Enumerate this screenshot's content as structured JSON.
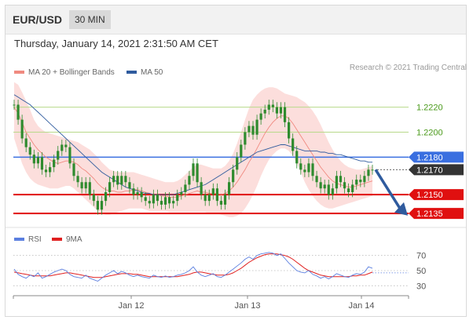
{
  "header": {
    "symbol": "EUR/USD",
    "timeframe": "30 MIN"
  },
  "datetime": "Thursday, January 14, 2021 2:31:50 AM CET",
  "legend": {
    "bollinger": {
      "label": "MA 20 + Bollinger Bands",
      "color": "#f08a80"
    },
    "ma50": {
      "label": "MA 50",
      "color": "#2f5b9e"
    },
    "rsi": {
      "label": "RSI",
      "color": "#5b7fe0"
    },
    "rsi_ma": {
      "label": "9MA",
      "color": "#e02020"
    }
  },
  "copyright": "Research © 2021 Trading Central",
  "colors": {
    "candle": "#2e8b2e",
    "band": "#fbd3d0",
    "resistance": "#b7d98a",
    "pivot": "#3a6fe0",
    "support": "#e01010",
    "arrow": "#2f5b9e",
    "last_price": "#333333"
  },
  "chart_data": [
    {
      "type": "candlestick",
      "title": "",
      "x_ticks": [
        "Jan 12",
        "Jan 13",
        "Jan 14"
      ],
      "ylim": [
        1.2125,
        1.2238
      ],
      "price_levels": [
        {
          "value": "1.2220",
          "kind": "resistance"
        },
        {
          "value": "1.2200",
          "kind": "resistance"
        },
        {
          "value": "1.2180",
          "kind": "pivot"
        },
        {
          "value": "1.2170",
          "kind": "last"
        },
        {
          "value": "1.2150",
          "kind": "support"
        },
        {
          "value": "1.2135",
          "kind": "support"
        }
      ],
      "close": [
        1.2222,
        1.221,
        1.2195,
        1.2188,
        1.2182,
        1.2175,
        1.218,
        1.217,
        1.2168,
        1.2172,
        1.2178,
        1.2185,
        1.219,
        1.2188,
        1.2175,
        1.2165,
        1.216,
        1.2155,
        1.216,
        1.215,
        1.2145,
        1.2138,
        1.2145,
        1.2152,
        1.216,
        1.2165,
        1.2158,
        1.2165,
        1.216,
        1.2155,
        1.215,
        1.2152,
        1.2148,
        1.2145,
        1.2143,
        1.215,
        1.2145,
        1.2142,
        1.2148,
        1.2143,
        1.2145,
        1.215,
        1.2152,
        1.2158,
        1.2165,
        1.2175,
        1.216,
        1.215,
        1.2145,
        1.215,
        1.2155,
        1.2145,
        1.2142,
        1.215,
        1.216,
        1.217,
        1.218,
        1.219,
        1.22,
        1.2205,
        1.2198,
        1.221,
        1.2215,
        1.2218,
        1.2222,
        1.222,
        1.2215,
        1.222,
        1.2208,
        1.2195,
        1.2185,
        1.2175,
        1.217,
        1.2168,
        1.2175,
        1.2165,
        1.216,
        1.2155,
        1.2158,
        1.215,
        1.2155,
        1.2165,
        1.216,
        1.2155,
        1.2152,
        1.2158,
        1.2162,
        1.216,
        1.2165,
        1.217,
        1.217
      ],
      "ma20": [
        1.222,
        1.2215,
        1.2208,
        1.22,
        1.2195,
        1.219,
        1.2186,
        1.2183,
        1.218,
        1.2178,
        1.2176,
        1.2175,
        1.2176,
        1.2177,
        1.2177,
        1.2176,
        1.2174,
        1.2171,
        1.2169,
        1.2166,
        1.2163,
        1.2159,
        1.2156,
        1.2154,
        1.2153,
        1.2153,
        1.2152,
        1.2152,
        1.2153,
        1.2153,
        1.2154,
        1.2154,
        1.2153,
        1.2152,
        1.2151,
        1.215,
        1.215,
        1.2149,
        1.2149,
        1.2148,
        1.2148,
        1.2148,
        1.2149,
        1.215,
        1.2151,
        1.2152,
        1.2153,
        1.2152,
        1.2152,
        1.2151,
        1.2151,
        1.2151,
        1.215,
        1.2151,
        1.2153,
        1.2156,
        1.216,
        1.2165,
        1.217,
        1.2176,
        1.2181,
        1.2187,
        1.2193,
        1.2199,
        1.2204,
        1.2208,
        1.2211,
        1.2213,
        1.2213,
        1.2211,
        1.2207,
        1.2202,
        1.2197,
        1.2192,
        1.2187,
        1.2182,
        1.2177,
        1.2172,
        1.2168,
        1.2164,
        1.2161,
        1.2159,
        1.2158,
        1.2157,
        1.2156,
        1.2156,
        1.2157,
        1.2158,
        1.2159,
        1.216,
        1.2161
      ],
      "ma50": [
        1.223,
        1.2228,
        1.2226,
        1.2224,
        1.2222,
        1.2219,
        1.2216,
        1.2213,
        1.221,
        1.2207,
        1.2204,
        1.2201,
        1.2198,
        1.2195,
        1.2192,
        1.2189,
        1.2186,
        1.2183,
        1.218,
        1.2177,
        1.2174,
        1.2171,
        1.2168,
        1.2166,
        1.2164,
        1.2162,
        1.216,
        1.2158,
        1.2156,
        1.2155,
        1.2154,
        1.2153,
        1.2152,
        1.2151,
        1.2151,
        1.215,
        1.215,
        1.215,
        1.215,
        1.215,
        1.215,
        1.2151,
        1.2152,
        1.2153,
        1.2154,
        1.2155,
        1.2156,
        1.2157,
        1.2158,
        1.216,
        1.2162,
        1.2164,
        1.2166,
        1.2168,
        1.217,
        1.2172,
        1.2174,
        1.2176,
        1.2178,
        1.218,
        1.2182,
        1.2184,
        1.2185,
        1.2186,
        1.2187,
        1.2188,
        1.2189,
        1.219,
        1.219,
        1.2189,
        1.2188,
        1.2187,
        1.2186,
        1.2185,
        1.2185,
        1.2185,
        1.2185,
        1.2184,
        1.2184,
        1.2183,
        1.2183,
        1.2182,
        1.2182,
        1.2181,
        1.218,
        1.2179,
        1.2178,
        1.2177,
        1.2177,
        1.2176,
        1.2176
      ],
      "bb_upper": [
        1.224,
        1.2238,
        1.2232,
        1.2225,
        1.2218,
        1.221,
        1.2205,
        1.2202,
        1.22,
        1.2199,
        1.2198,
        1.2197,
        1.2196,
        1.2195,
        1.2194,
        1.2193,
        1.2192,
        1.219,
        1.2188,
        1.2186,
        1.2183,
        1.218,
        1.2176,
        1.2173,
        1.217,
        1.2169,
        1.2168,
        1.2168,
        1.2168,
        1.2168,
        1.2168,
        1.2167,
        1.2166,
        1.2165,
        1.2164,
        1.2163,
        1.2162,
        1.2161,
        1.216,
        1.216,
        1.216,
        1.2161,
        1.2163,
        1.2166,
        1.2169,
        1.2172,
        1.2174,
        1.2174,
        1.2173,
        1.2172,
        1.2171,
        1.2171,
        1.2171,
        1.2173,
        1.2177,
        1.2183,
        1.2191,
        1.22,
        1.221,
        1.2219,
        1.2226,
        1.223,
        1.2233,
        1.2235,
        1.2236,
        1.2236,
        1.2235,
        1.2233,
        1.2231,
        1.223,
        1.2229,
        1.2228,
        1.2226,
        1.2224,
        1.2221,
        1.2217,
        1.2212,
        1.2206,
        1.2199,
        1.2192,
        1.2186,
        1.2181,
        1.2177,
        1.2174,
        1.2172,
        1.2171,
        1.217,
        1.217,
        1.2171,
        1.2172,
        1.2173
      ],
      "bb_lower": [
        1.2195,
        1.2185,
        1.2175,
        1.2168,
        1.2163,
        1.216,
        1.2158,
        1.2157,
        1.2156,
        1.2155,
        1.2155,
        1.2155,
        1.2156,
        1.2157,
        1.2157,
        1.2155,
        1.2152,
        1.2149,
        1.2146,
        1.2143,
        1.214,
        1.2137,
        1.2135,
        1.2134,
        1.2134,
        1.2135,
        1.2136,
        1.2137,
        1.2138,
        1.2139,
        1.2139,
        1.2139,
        1.2139,
        1.2138,
        1.2137,
        1.2137,
        1.2137,
        1.2137,
        1.2137,
        1.2136,
        1.2136,
        1.2136,
        1.2136,
        1.2136,
        1.2136,
        1.2136,
        1.2136,
        1.2136,
        1.2136,
        1.2135,
        1.2135,
        1.2135,
        1.2134,
        1.2133,
        1.2132,
        1.2132,
        1.2133,
        1.2135,
        1.2139,
        1.2144,
        1.215,
        1.2157,
        1.2165,
        1.2172,
        1.2178,
        1.2182,
        1.2185,
        1.2187,
        1.2187,
        1.2185,
        1.2181,
        1.2175,
        1.2168,
        1.216,
        1.2154,
        1.2149,
        1.2145,
        1.2142,
        1.214,
        1.2139,
        1.2139,
        1.214,
        1.2141,
        1.2142,
        1.2143,
        1.2144,
        1.2145,
        1.2146,
        1.2147,
        1.2148,
        1.2149
      ]
    },
    {
      "type": "line",
      "title": "",
      "y_ticks": [
        "70",
        "50",
        "30"
      ],
      "ylim": [
        20,
        80
      ],
      "rsi": [
        52,
        45,
        42,
        40,
        44,
        42,
        47,
        40,
        42,
        45,
        48,
        50,
        52,
        50,
        45,
        42,
        41,
        40,
        44,
        40,
        38,
        36,
        40,
        44,
        47,
        50,
        46,
        49,
        47,
        44,
        42,
        44,
        42,
        41,
        40,
        44,
        42,
        41,
        43,
        41,
        42,
        44,
        45,
        47,
        50,
        55,
        48,
        44,
        42,
        44,
        46,
        42,
        41,
        44,
        48,
        52,
        56,
        60,
        65,
        68,
        65,
        70,
        72,
        73,
        74,
        73,
        70,
        72,
        66,
        60,
        55,
        50,
        48,
        47,
        50,
        45,
        43,
        40,
        42,
        39,
        42,
        46,
        44,
        42,
        41,
        44,
        46,
        45,
        48,
        55,
        53
      ],
      "rsi_ma": [
        48,
        47,
        46,
        45,
        44,
        43,
        43,
        43,
        43,
        43,
        44,
        45,
        46,
        47,
        47,
        46,
        45,
        44,
        43,
        42,
        41,
        41,
        41,
        42,
        43,
        44,
        45,
        46,
        46,
        46,
        45,
        45,
        44,
        43,
        42,
        42,
        42,
        42,
        42,
        42,
        42,
        42,
        43,
        44,
        45,
        47,
        48,
        48,
        47,
        46,
        45,
        44,
        44,
        44,
        45,
        47,
        50,
        53,
        57,
        61,
        64,
        67,
        69,
        71,
        72,
        72,
        72,
        71,
        70,
        68,
        65,
        61,
        57,
        53,
        50,
        48,
        46,
        44,
        43,
        42,
        42,
        42,
        42,
        42,
        42,
        43,
        43,
        44,
        44,
        46,
        48
      ]
    }
  ]
}
